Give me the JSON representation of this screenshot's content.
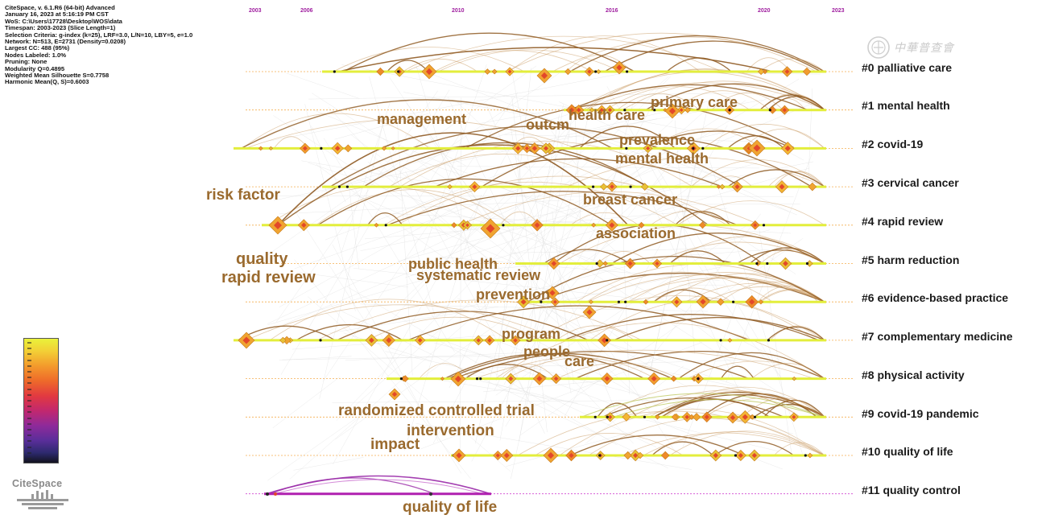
{
  "info_lines": [
    "CiteSpace, v. 6.1.R6 (64-bit) Advanced",
    "January 16, 2023 at 5:16:19 PM CST",
    "WoS: C:\\Users\\17728\\Desktop\\WOS\\data",
    "Timespan: 2003-2023 (Slice Length=1)",
    "Selection Criteria: g-index (k=25), LRF=3.0, L/N=10, LBY=5, e=1.0",
    "Network: N=513, E=2731 (Density=0.0208)",
    "Largest CC: 488 (95%)",
    "Nodes Labeled: 1.0%",
    "Pruning: None",
    "Modularity Q=0.4895",
    "Weighted Mean Silhouette S=0.7758",
    "Harmonic Mean(Q, S)=0.6003"
  ],
  "timeline_years": [
    "2003",
    "2006",
    "2010",
    "2016",
    "2020",
    "2023"
  ],
  "clusters": [
    "#0 palliative care",
    "#1 mental health",
    "#2 covid-19",
    "#3 cervical cancer",
    "#4 rapid review",
    "#5 harm reduction",
    "#6 evidence-based practice",
    "#7 complementary medicine",
    "#8 physical activity",
    "#9 covid-19 pandemic",
    "#10 quality of life",
    "#11 quality control"
  ],
  "keywords": [
    "primary care",
    "management",
    "outcm",
    "health care",
    "prevalence",
    "mental health",
    "risk factor",
    "breast cancer",
    "association",
    "quality",
    "rapid review",
    "public health",
    "systematic review",
    "prevention",
    "program",
    "people",
    "care",
    "randomized controlled trial",
    "intervention",
    "impact",
    "quality of life"
  ],
  "logo_text": "CiteSpace",
  "watermark": "中華普查會",
  "legend_colors": [
    "#e9f23a",
    "#f39a2c",
    "#e23a40",
    "#8f2a9a",
    "#2d2a6e",
    "#12121e"
  ]
}
